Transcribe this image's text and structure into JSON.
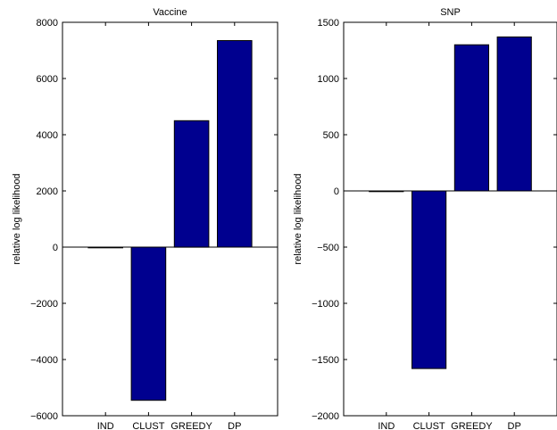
{
  "chart_data": [
    {
      "type": "bar",
      "title": "Vaccine",
      "ylabel": "relative log likelihood",
      "xlabel": "",
      "categories": [
        "IND",
        "CLUST",
        "GREEDY",
        "DP"
      ],
      "values": [
        0,
        -5450,
        4500,
        7350
      ],
      "ylim": [
        -6000,
        8000
      ],
      "yticks": [
        -6000,
        -4000,
        -2000,
        0,
        2000,
        4000,
        6000,
        8000
      ],
      "ytick_labels": [
        "−6000",
        "−4000",
        "−2000",
        "0",
        "2000",
        "4000",
        "6000",
        "8000"
      ],
      "bar_color": "#00008f",
      "grid": false
    },
    {
      "type": "bar",
      "title": "SNP",
      "ylabel": "relative log likelihood",
      "xlabel": "",
      "categories": [
        "IND",
        "CLUST",
        "GREEDY",
        "DP"
      ],
      "values": [
        0,
        -1580,
        1300,
        1370
      ],
      "ylim": [
        -2000,
        1500
      ],
      "yticks": [
        -2000,
        -1500,
        -1000,
        -500,
        0,
        500,
        1000,
        1500
      ],
      "ytick_labels": [
        "−2000",
        "−1500",
        "−1000",
        "−500",
        "0",
        "500",
        "1000",
        "1500"
      ],
      "bar_color": "#00008f",
      "grid": false
    }
  ]
}
